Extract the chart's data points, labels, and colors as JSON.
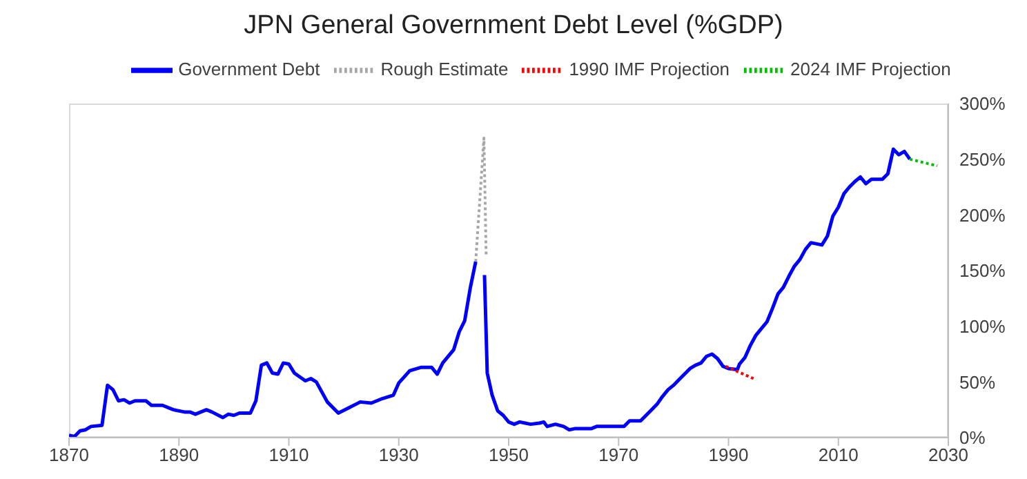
{
  "chart_data": {
    "type": "line",
    "title": "JPN General Government Debt Level (%GDP)",
    "legend": "top",
    "xlim": [
      1870,
      2030
    ],
    "xticks": [
      1870,
      1890,
      1910,
      1930,
      1950,
      1970,
      1990,
      2010,
      2030
    ],
    "ylim": [
      0,
      300
    ],
    "yticks": [
      {
        "value": 0,
        "label": "0%"
      },
      {
        "value": 50,
        "label": "50%"
      },
      {
        "value": 100,
        "label": "100%"
      },
      {
        "value": 150,
        "label": "150%"
      },
      {
        "value": 200,
        "label": "200%"
      },
      {
        "value": 250,
        "label": "250%"
      },
      {
        "value": 300,
        "label": "300%"
      }
    ],
    "series": [
      {
        "name": "Government Debt",
        "color": "#0000ff",
        "line_style": "solid",
        "x": [
          1870,
          1871,
          1872,
          1873,
          1874,
          1876,
          1877,
          1878,
          1879,
          1880,
          1881,
          1882,
          1884,
          1885,
          1887,
          1889,
          1891,
          1892,
          1893,
          1895,
          1896,
          1898,
          1899,
          1900,
          1901,
          1903,
          1904,
          1905,
          1906,
          1907,
          1908,
          1909,
          1910,
          1911,
          1913,
          1914,
          1915,
          1917,
          1919,
          1921,
          1923,
          1925,
          1927,
          1929,
          1930,
          1932,
          1934,
          1936,
          1937,
          1938,
          1940,
          1941,
          1942,
          1943,
          1944,
          1945,
          1945.6,
          1946.1,
          1947,
          1948,
          1949,
          1950,
          1951,
          1952,
          1954,
          1955.6,
          1956.4,
          1957,
          1958.5,
          1960,
          1961,
          1962,
          1965,
          1966,
          1971,
          1972,
          1974,
          1975,
          1976,
          1977,
          1978,
          1979,
          1980,
          1981,
          1982,
          1983,
          1984,
          1985,
          1986,
          1987,
          1988,
          1989,
          1990,
          1991.6,
          1992,
          1993,
          1994,
          1995,
          1996,
          1997,
          1998,
          1999,
          2000,
          2001,
          2002,
          2003,
          2004,
          2005,
          2007,
          2008,
          2009,
          2010,
          2011,
          2012,
          2013,
          2014,
          2015,
          2016,
          2018,
          2019,
          2020,
          2021,
          2022,
          2023
        ],
        "values": [
          2,
          1,
          6,
          7,
          10,
          11,
          47,
          43,
          33,
          34,
          31,
          33,
          33,
          29,
          29,
          25,
          23,
          23,
          21,
          25,
          23,
          18,
          21,
          20,
          22,
          22,
          33,
          65,
          67,
          58,
          57,
          67,
          66,
          58,
          51,
          53,
          50,
          32,
          22,
          27,
          32,
          31,
          35,
          38,
          49,
          60,
          63,
          63,
          57,
          67,
          79,
          95,
          105,
          134,
          158,
          null,
          146,
          58,
          38,
          24,
          20,
          14,
          12,
          14,
          12,
          13,
          14,
          10,
          12,
          10,
          7,
          8,
          8,
          10,
          10,
          15,
          15,
          20,
          25,
          30,
          37,
          43,
          47,
          52,
          57,
          62,
          65,
          67,
          73,
          75,
          71,
          64,
          62,
          61,
          66,
          72,
          83,
          92,
          98,
          104,
          116,
          129,
          135,
          145,
          154,
          160,
          169,
          175,
          173,
          181,
          199,
          207,
          219,
          225,
          230,
          234,
          228,
          232,
          232,
          237,
          259,
          254,
          257,
          250
        ]
      },
      {
        "name": "Rough Estimate",
        "color": "#a6a6a6",
        "line_style": "dotted",
        "x": [
          1944,
          1945.5,
          1945.9
        ],
        "values": [
          158,
          269,
          164
        ]
      },
      {
        "name": "1990 IMF Projection",
        "color": "#ff0000",
        "line_style": "dotted",
        "x": [
          1989.5,
          1995
        ],
        "values": [
          64,
          52
        ]
      },
      {
        "name": "2024 IMF Projection",
        "color": "#00c000",
        "line_style": "dotted",
        "x": [
          2023,
          2028
        ],
        "values": [
          250,
          244
        ]
      }
    ]
  }
}
